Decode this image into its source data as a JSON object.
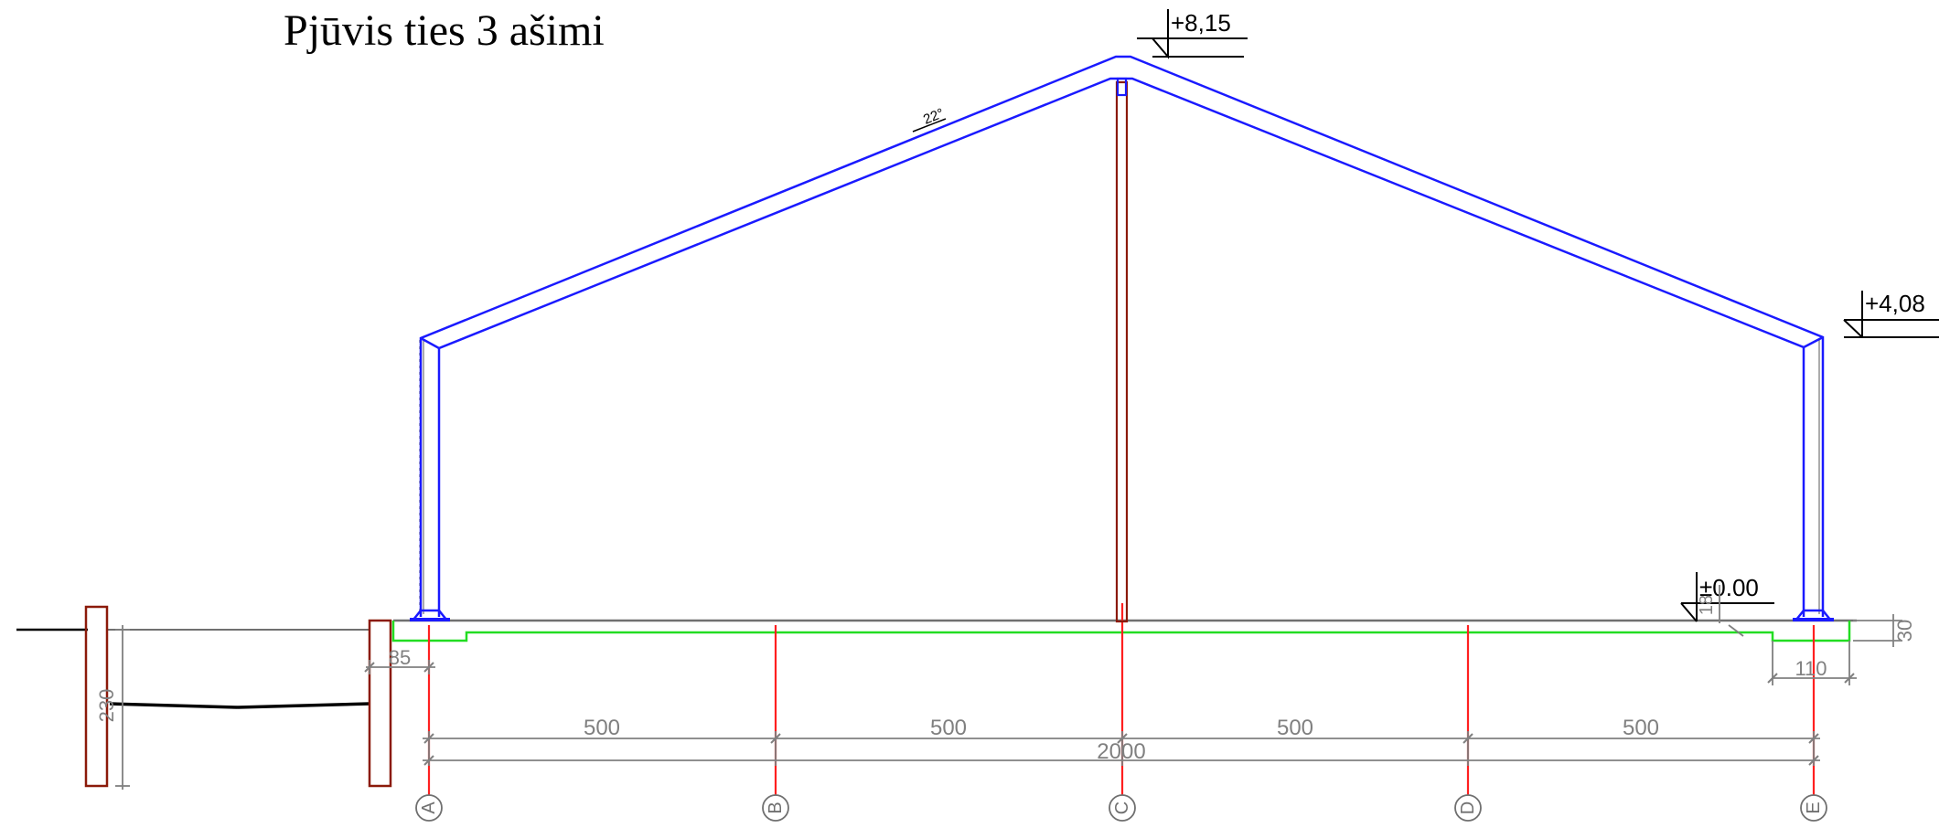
{
  "title": "Pjūvis ties 3 ašimi",
  "levels": {
    "ridge": "+8,15",
    "eave": "+4,08",
    "floor": "±0.00"
  },
  "roof_angle": "22°",
  "axes": [
    "A",
    "B",
    "C",
    "D",
    "E"
  ],
  "dimensions": {
    "bays": [
      "500",
      "500",
      "500",
      "500"
    ],
    "total": "2000",
    "left_offset": "85",
    "right_footing": "110",
    "right_depth": "30",
    "floor_step": "18",
    "fence_height": "230"
  },
  "colors": {
    "frame": "#1a1aff",
    "column": "#8b1a0a",
    "axis": "#ff2020",
    "slab": "#22dd22",
    "dimension": "#808080"
  }
}
